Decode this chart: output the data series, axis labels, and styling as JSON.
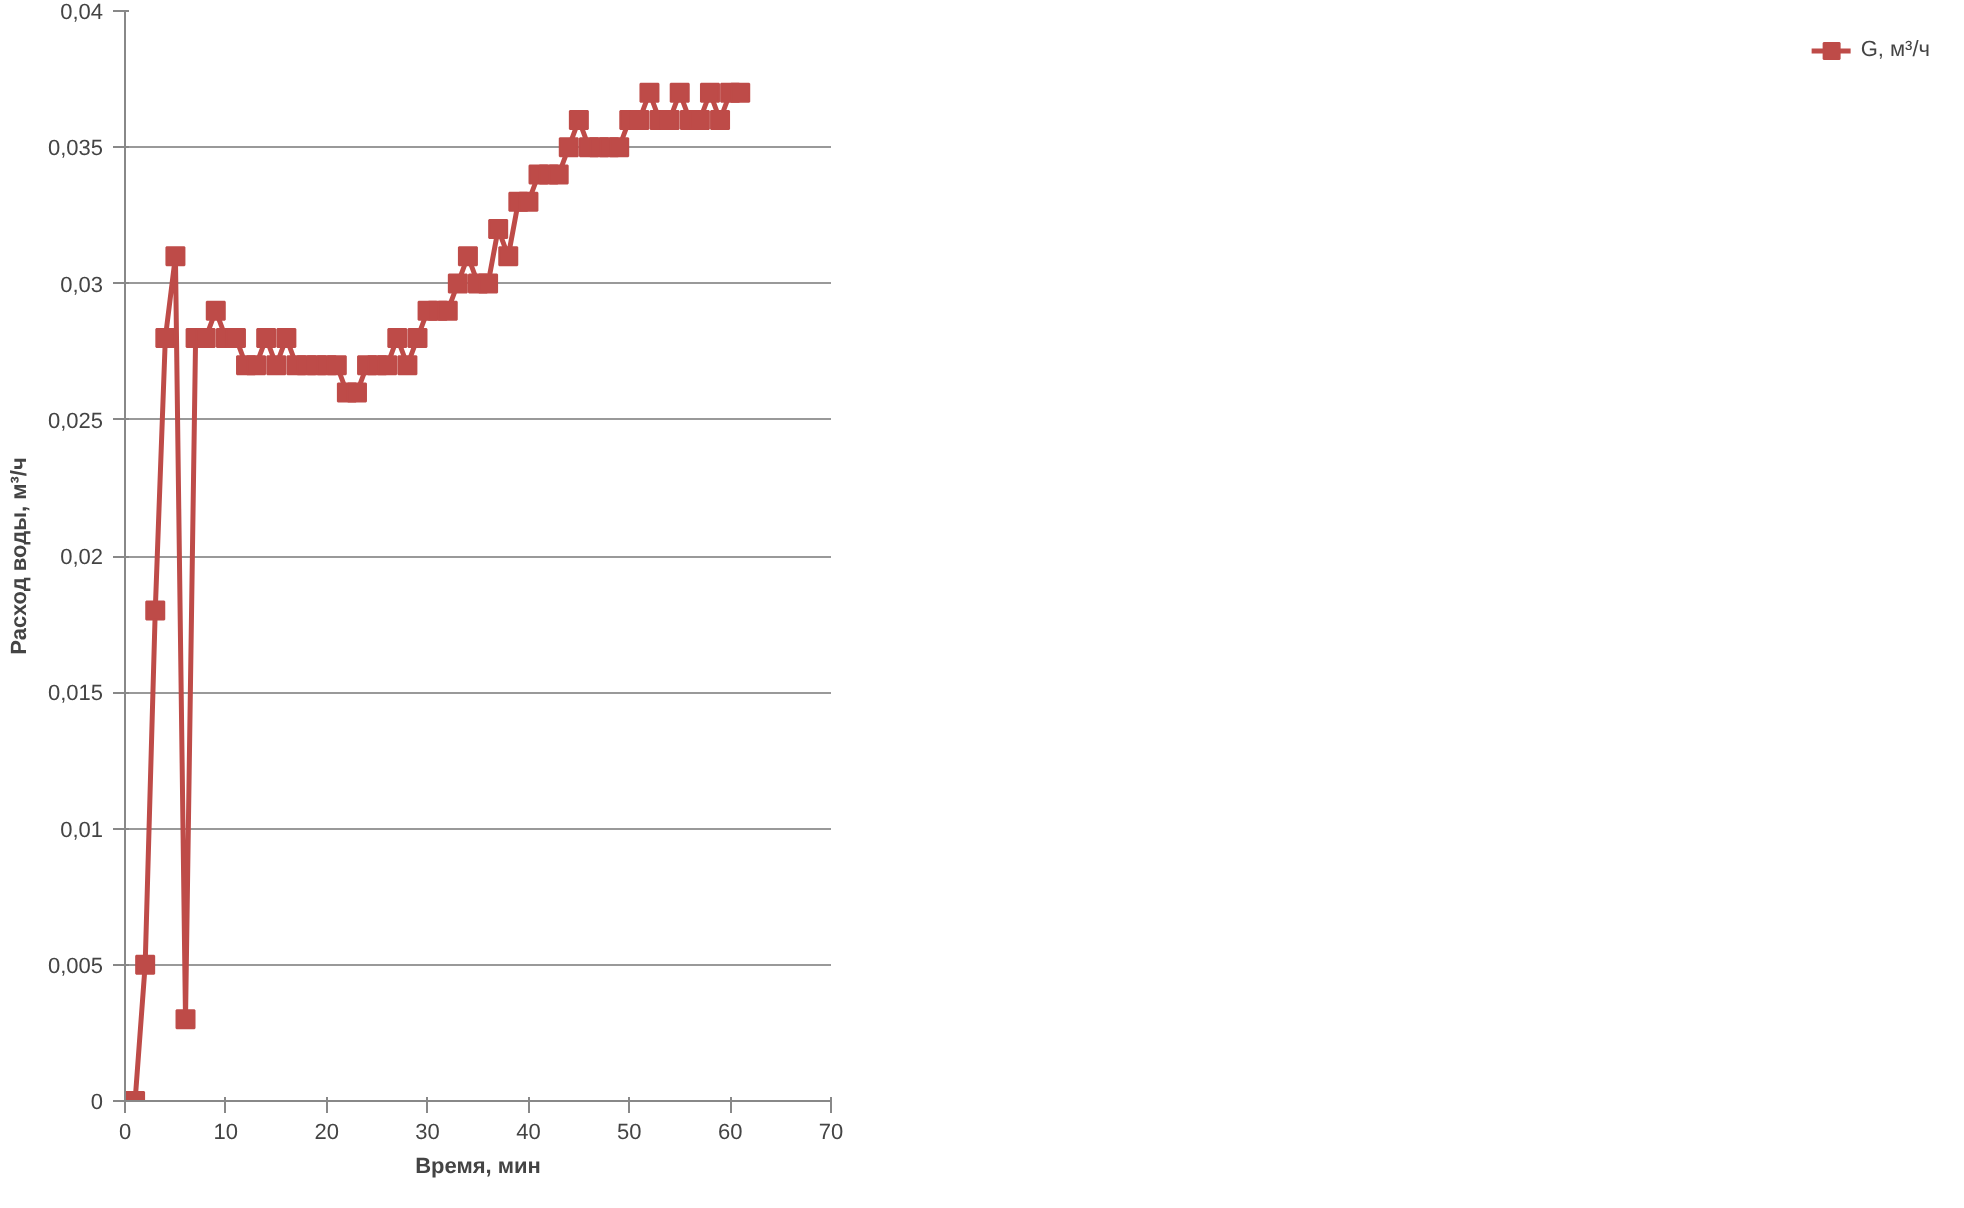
{
  "chart_data": {
    "type": "line",
    "xlabel": "Время, мин",
    "ylabel": "Расход воды, м³/ч",
    "x": [
      1,
      2,
      3,
      4,
      5,
      6,
      7,
      8,
      9,
      10,
      11,
      12,
      13,
      14,
      15,
      16,
      17,
      18,
      19,
      20,
      21,
      22,
      23,
      24,
      25,
      26,
      27,
      28,
      29,
      30,
      31,
      32,
      33,
      34,
      35,
      36,
      37,
      38,
      39,
      40,
      41,
      42,
      43,
      44,
      45,
      46,
      47,
      48,
      49,
      50,
      51,
      52,
      53,
      54,
      55,
      56,
      57,
      58,
      59,
      60,
      61
    ],
    "series": [
      {
        "name": "G, м³/ч",
        "color": "#be4b48",
        "values": [
          0,
          0.005,
          0.018,
          0.028,
          0.031,
          0.003,
          0.028,
          0.028,
          0.029,
          0.028,
          0.028,
          0.027,
          0.027,
          0.028,
          0.027,
          0.028,
          0.027,
          0.027,
          0.027,
          0.027,
          0.027,
          0.026,
          0.026,
          0.027,
          0.027,
          0.027,
          0.028,
          0.027,
          0.028,
          0.029,
          0.029,
          0.029,
          0.03,
          0.031,
          0.03,
          0.03,
          0.032,
          0.031,
          0.033,
          0.033,
          0.034,
          0.034,
          0.034,
          0.035,
          0.036,
          0.035,
          0.035,
          0.035,
          0.035,
          0.036,
          0.036,
          0.037,
          0.036,
          0.036,
          0.037,
          0.036,
          0.036,
          0.037,
          0.036,
          0.037,
          0.037
        ]
      }
    ],
    "xlim": [
      0,
      70
    ],
    "xticks": [
      0,
      10,
      20,
      30,
      40,
      50,
      60,
      70
    ],
    "ylim": [
      0,
      0.04
    ],
    "yticks": [
      {
        "value": 0,
        "label": "0"
      },
      {
        "value": 0.005,
        "label": "0,005"
      },
      {
        "value": 0.01,
        "label": "0,01"
      },
      {
        "value": 0.015,
        "label": "0,015"
      },
      {
        "value": 0.02,
        "label": "0,02"
      },
      {
        "value": 0.025,
        "label": "0,025"
      },
      {
        "value": 0.03,
        "label": "0,03"
      },
      {
        "value": 0.035,
        "label": "0,035"
      },
      {
        "value": 0.04,
        "label": "0,04"
      }
    ],
    "grid": "y",
    "legend": "right",
    "marker": "square",
    "line_style": "solid"
  }
}
